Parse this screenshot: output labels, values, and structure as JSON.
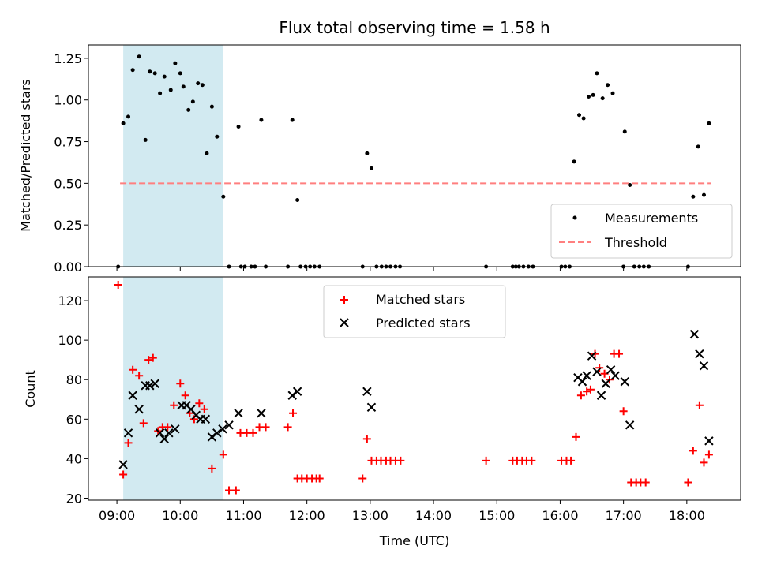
{
  "chart_data": {
    "type": "scatter",
    "title": "Flux total observing time = 1.58 h",
    "xlabel": "Time (UTC)",
    "xlim": [
      8.55,
      18.85
    ],
    "x_ticks": [
      9,
      10,
      11,
      12,
      13,
      14,
      15,
      16,
      17,
      18
    ],
    "x_tick_labels": [
      "09:00",
      "10:00",
      "11:00",
      "12:00",
      "13:00",
      "14:00",
      "15:00",
      "16:00",
      "17:00",
      "18:00"
    ],
    "observing_window": [
      9.1,
      10.68
    ],
    "colors": {
      "window": "#add8e6",
      "measurement": "#000000",
      "threshold": "#ff7f7f",
      "matched": "#ff0000",
      "predicted": "#000000"
    },
    "top": {
      "ylabel": "Matched/Predicted stars",
      "ylim": [
        0,
        1.33
      ],
      "y_ticks": [
        0,
        0.25,
        0.5,
        0.75,
        1.0,
        1.25
      ],
      "y_tick_labels": [
        "0.00",
        "0.25",
        "0.50",
        "0.75",
        "1.00",
        "1.25"
      ],
      "threshold": 0.5,
      "threshold_range": [
        9.05,
        18.38
      ],
      "legend": {
        "measurements": "Measurements",
        "threshold": "Threshold"
      },
      "x": [
        9.02,
        9.1,
        9.18,
        9.25,
        9.35,
        9.45,
        9.52,
        9.6,
        9.68,
        9.75,
        9.85,
        9.92,
        10.0,
        10.05,
        10.13,
        10.2,
        10.28,
        10.35,
        10.42,
        10.5,
        10.58,
        10.68,
        10.77,
        10.92,
        10.96,
        11.02,
        11.12,
        11.18,
        11.28,
        11.35,
        11.7,
        11.77,
        11.85,
        11.9,
        11.98,
        12.05,
        12.12,
        12.2,
        12.88,
        12.95,
        13.02,
        13.1,
        13.18,
        13.25,
        13.32,
        13.4,
        13.47,
        14.83,
        15.25,
        15.3,
        15.35,
        15.42,
        15.5,
        15.57,
        16.02,
        16.08,
        16.15,
        16.22,
        16.3,
        16.37,
        16.45,
        16.52,
        16.58,
        16.67,
        16.75,
        16.83,
        17.0,
        17.02,
        17.1,
        17.17,
        17.25,
        17.32,
        17.4,
        18.02,
        18.1,
        18.18,
        18.27,
        18.35
      ],
      "y": [
        0,
        0.86,
        0.9,
        1.18,
        1.26,
        0.76,
        1.17,
        1.16,
        1.04,
        1.14,
        1.06,
        1.22,
        1.16,
        1.08,
        0.94,
        0.99,
        1.1,
        1.09,
        0.68,
        0.96,
        0.78,
        0.42,
        0,
        0.84,
        0,
        0,
        0,
        0,
        0.88,
        0,
        0,
        0.88,
        0.4,
        0,
        0,
        0,
        0,
        0,
        0,
        0.68,
        0.59,
        0,
        0,
        0,
        0,
        0,
        0,
        0,
        0,
        0,
        0,
        0,
        0,
        0,
        0,
        0,
        0,
        0.63,
        0.91,
        0.89,
        1.02,
        1.03,
        1.16,
        1.01,
        1.09,
        1.04,
        0,
        0.81,
        0.49,
        0,
        0,
        0,
        0,
        0,
        0.42,
        0.72,
        0.43,
        0.86
      ]
    },
    "bottom": {
      "ylabel": "Count",
      "ylim": [
        19,
        132
      ],
      "y_ticks": [
        20,
        40,
        60,
        80,
        100,
        120
      ],
      "y_tick_labels": [
        "20",
        "40",
        "60",
        "80",
        "100",
        "120"
      ],
      "legend": {
        "matched": "Matched stars",
        "predicted": "Predicted stars"
      },
      "series": [
        {
          "name": "Matched stars",
          "marker": "plus",
          "x": [
            9.02,
            9.1,
            9.18,
            9.25,
            9.35,
            9.42,
            9.5,
            9.57,
            9.65,
            9.72,
            9.8,
            9.9,
            10.0,
            10.08,
            10.15,
            10.22,
            10.3,
            10.38,
            10.5,
            10.68,
            10.77,
            10.88,
            10.95,
            11.05,
            11.15,
            11.25,
            11.35,
            11.7,
            11.78,
            11.85,
            11.92,
            12.0,
            12.08,
            12.15,
            12.2,
            12.88,
            12.95,
            13.02,
            13.1,
            13.17,
            13.25,
            13.32,
            13.4,
            13.48,
            14.83,
            15.25,
            15.32,
            15.4,
            15.47,
            15.55,
            16.02,
            16.1,
            16.17,
            16.25,
            16.33,
            16.42,
            16.48,
            16.55,
            16.62,
            16.7,
            16.78,
            16.85,
            16.93,
            17.0,
            17.12,
            17.2,
            17.27,
            17.35,
            18.02,
            18.1,
            18.2,
            18.27,
            18.35
          ],
          "y": [
            128,
            32,
            48,
            85,
            82,
            58,
            90,
            91,
            54,
            56,
            56,
            67,
            78,
            72,
            63,
            60,
            68,
            65,
            35,
            42,
            24,
            24,
            53,
            53,
            53,
            56,
            56,
            56,
            63,
            30,
            30,
            30,
            30,
            30,
            30,
            30,
            50,
            39,
            39,
            39,
            39,
            39,
            39,
            39,
            39,
            39,
            39,
            39,
            39,
            39,
            39,
            39,
            39,
            51,
            72,
            74,
            75,
            93,
            86,
            83,
            80,
            93,
            93,
            64,
            28,
            28,
            28,
            28,
            28,
            44,
            67,
            38,
            42
          ]
        },
        {
          "name": "Predicted stars",
          "marker": "x",
          "x": [
            9.1,
            9.18,
            9.25,
            9.35,
            9.45,
            9.52,
            9.6,
            9.68,
            9.75,
            9.82,
            9.92,
            10.02,
            10.1,
            10.17,
            10.25,
            10.32,
            10.4,
            10.5,
            10.58,
            10.67,
            10.77,
            10.92,
            11.28,
            11.77,
            11.85,
            12.95,
            13.02,
            16.28,
            16.35,
            16.42,
            16.5,
            16.58,
            16.65,
            16.72,
            16.8,
            16.87,
            17.02,
            17.1,
            18.12,
            18.2,
            18.27,
            18.35
          ],
          "y": [
            37,
            53,
            72,
            65,
            77,
            77,
            78,
            53,
            50,
            53,
            55,
            67,
            67,
            65,
            62,
            60,
            60,
            51,
            53,
            55,
            57,
            63,
            63,
            72,
            74,
            74,
            66,
            81,
            79,
            82,
            92,
            84,
            72,
            78,
            85,
            82,
            79,
            57,
            103,
            93,
            87,
            49
          ]
        }
      ]
    }
  }
}
